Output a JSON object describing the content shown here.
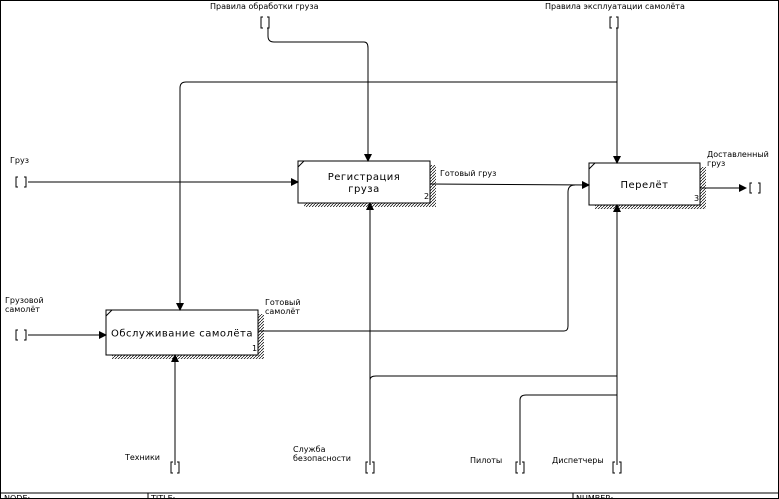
{
  "boxes": [
    {
      "label": [
        "Обслуживание самолёта"
      ],
      "number": "1"
    },
    {
      "label": [
        "Регистрация",
        "груза"
      ],
      "number": "2"
    },
    {
      "label": [
        "Перелёт"
      ],
      "number": "3"
    }
  ],
  "arrows": [
    {
      "label": [
        "Правила обработки груза"
      ]
    },
    {
      "label": [
        "Правила эксплуатации самолёта"
      ]
    },
    {
      "label": [
        "Груз"
      ]
    },
    {
      "label": [
        "Грузовой",
        "самолёт"
      ]
    },
    {
      "label": [
        "Готовый груз"
      ]
    },
    {
      "label": [
        "Готовый",
        "самолёт"
      ]
    },
    {
      "label": [
        "Доставленный",
        "груз"
      ]
    },
    {
      "label": [
        "Техники"
      ]
    },
    {
      "label": [
        "Служба",
        "безопасности"
      ]
    },
    {
      "label": [
        "Пилоты"
      ]
    },
    {
      "label": [
        "Диспетчеры"
      ]
    }
  ],
  "footer": {
    "node": "NODE:",
    "title": "TITLE:",
    "number": "NUMBER:"
  }
}
